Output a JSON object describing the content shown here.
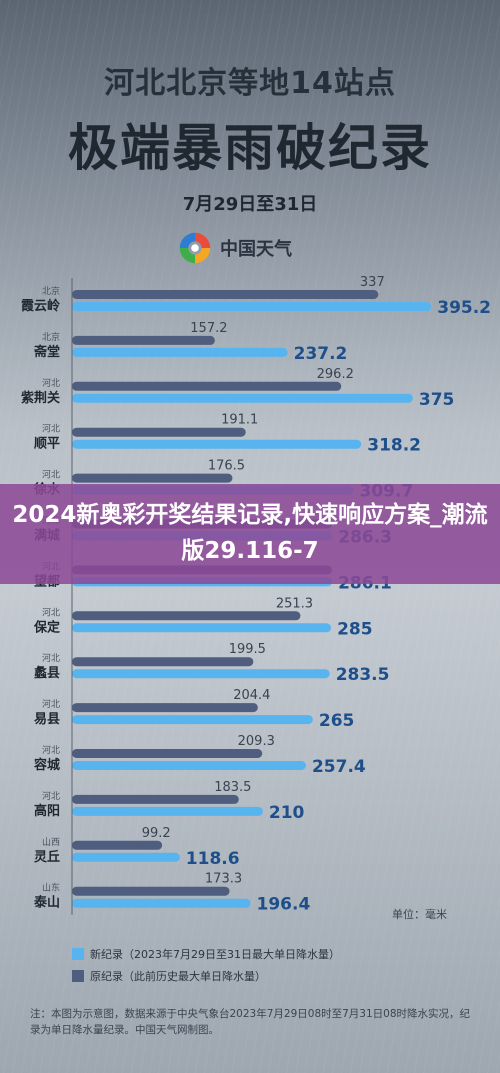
{
  "header": {
    "title_line1": "河北北京等地14站点",
    "title_line2": "极端暴雨破纪录",
    "date_range": "7月29日至31日",
    "brand": "中国天气"
  },
  "chart_data": {
    "type": "bar",
    "orientation": "horizontal",
    "categories": [
      {
        "region": "北京",
        "station": "霞云岭"
      },
      {
        "region": "北京",
        "station": "斋堂"
      },
      {
        "region": "河北",
        "station": "紫荆关"
      },
      {
        "region": "河北",
        "station": "顺平"
      },
      {
        "region": "河北",
        "station": "徐水"
      },
      {
        "region": "河北",
        "station": "满城"
      },
      {
        "region": "河北",
        "station": "望都"
      },
      {
        "region": "河北",
        "station": "保定"
      },
      {
        "region": "河北",
        "station": "蠡县"
      },
      {
        "region": "河北",
        "station": "易县"
      },
      {
        "region": "河北",
        "station": "容城"
      },
      {
        "region": "河北",
        "station": "高阳"
      },
      {
        "region": "山西",
        "station": "灵丘"
      },
      {
        "region": "山东",
        "station": "泰山"
      }
    ],
    "series": [
      {
        "name": "原纪录（此前历史最大单日降水量）",
        "color": "#4f5d7e",
        "values": [
          337,
          157.2,
          296.2,
          191.1,
          176.5,
          286.3,
          286.1,
          251.3,
          199.5,
          204.4,
          209.3,
          183.5,
          99.2,
          173.3
        ],
        "labels": [
          "337",
          "157.2",
          "296.2",
          "191.1",
          "176.5",
          "",
          "",
          "251.3",
          "199.5",
          "204.4",
          "209.3",
          "183.5",
          "99.2",
          "173.3"
        ]
      },
      {
        "name": "新纪录（2023年7月29日至31日最大单日降水量）",
        "color": "#58b4ef",
        "values": [
          395.2,
          237.2,
          375,
          318.2,
          309.7,
          286.3,
          286.1,
          285,
          283.5,
          265,
          257.4,
          210,
          118.6,
          196.4
        ],
        "labels": [
          "395.2",
          "237.2",
          "375",
          "318.2",
          "309.7",
          "286.3",
          "286.1",
          "285",
          "283.5",
          "265",
          "257.4",
          "210",
          "118.6",
          "196.4"
        ]
      }
    ],
    "unit": "单位：毫米",
    "legend_position": "bottom-left"
  },
  "legend": {
    "new": "新纪录（2023年7月29日至31日最大单日降水量）",
    "old": "原纪录（此前历史最大单日降水量）",
    "new_color": "#58b4ef",
    "old_color": "#4f5d7e"
  },
  "footer": {
    "note": "注：本图为示意图，数据来源于中央气象台2023年7月29日08时至7月31日08时降水实况，纪录为单日降水量纪录。中国天气网制图。"
  },
  "overlay": {
    "banner_text": "2024新奥彩开奖结果记录,快速响应方案_潮流版29.116-7"
  }
}
